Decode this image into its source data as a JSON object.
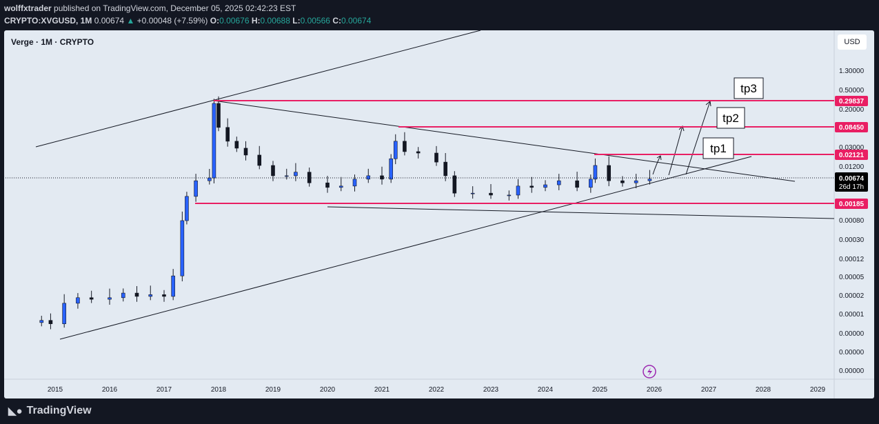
{
  "header": {
    "publisher": "wolffxtrader",
    "published_text": "published on TradingView.com, December 05, 2025 02:42:23 EST",
    "symbol": "CRYPTO:XVGUSD, 1M",
    "price": "0.00674",
    "change": "+0.00048 (+7.59%)",
    "o_label": "O:",
    "o": "0.00676",
    "h_label": "H:",
    "h": "0.00688",
    "l_label": "L:",
    "l": "0.00566",
    "c_label": "C:",
    "c": "0.00674"
  },
  "chart_title": "Verge · 1M · CRYPTO",
  "currency": "USD",
  "footer": {
    "brand": "TradingView"
  },
  "colors": {
    "up": "#2962ff",
    "down": "#131722",
    "level": "#e91e63",
    "bg": "#e3eaf2"
  },
  "chart_data": {
    "type": "candlestick",
    "scale": "log",
    "y_ticks": [
      "1.30000",
      "0.50000",
      "0.20000",
      "0.03000",
      "0.01200",
      "0.00080",
      "0.00030",
      "0.00012",
      "0.00005",
      "0.00002",
      "0.00001",
      "0.00000",
      "0.00000",
      "0.00000"
    ],
    "x_ticks": [
      "2015",
      "2016",
      "2017",
      "2018",
      "2019",
      "2020",
      "2021",
      "2022",
      "2023",
      "2024",
      "2025",
      "2026",
      "2027",
      "2028",
      "2029"
    ],
    "closes": [
      [
        "2014-10",
        7.2e-06
      ],
      [
        "2014-12",
        6.1e-06
      ],
      [
        "2015-03",
        1.65e-05
      ],
      [
        "2015-06",
        2.16e-05
      ],
      [
        "2015-09",
        2e-05
      ],
      [
        "2016-01",
        2.16e-05
      ],
      [
        "2016-04",
        2.7e-05
      ],
      [
        "2016-07",
        2.3e-05
      ],
      [
        "2016-10",
        2.5e-05
      ],
      [
        "2017-01",
        2.3e-05
      ],
      [
        "2017-03",
        6.2e-05
      ],
      [
        "2017-05",
        0.0009
      ],
      [
        "2017-06",
        0.00291
      ],
      [
        "2017-08",
        0.0062
      ],
      [
        "2017-11",
        0.0071
      ],
      [
        "2017-12",
        0.262
      ],
      [
        "2018-01",
        0.082
      ],
      [
        "2018-03",
        0.042
      ],
      [
        "2018-05",
        0.03
      ],
      [
        "2018-07",
        0.0215
      ],
      [
        "2018-10",
        0.013
      ],
      [
        "2019-01",
        0.0079
      ],
      [
        "2019-04",
        0.0079
      ],
      [
        "2019-06",
        0.0094
      ],
      [
        "2019-09",
        0.0056
      ],
      [
        "2020-01",
        0.0045
      ],
      [
        "2020-04",
        0.0048
      ],
      [
        "2020-07",
        0.0067
      ],
      [
        "2020-10",
        0.0079
      ],
      [
        "2021-01",
        0.0067
      ],
      [
        "2021-03",
        0.018
      ],
      [
        "2021-04",
        0.042
      ],
      [
        "2021-06",
        0.0254
      ],
      [
        "2021-09",
        0.0237
      ],
      [
        "2022-01",
        0.0153
      ],
      [
        "2022-03",
        0.0079
      ],
      [
        "2022-05",
        0.0034
      ],
      [
        "2022-09",
        0.0034
      ],
      [
        "2023-01",
        0.0031
      ],
      [
        "2023-05",
        0.0031
      ],
      [
        "2023-07",
        0.0048
      ],
      [
        "2023-10",
        0.0045
      ],
      [
        "2024-01",
        0.0051
      ],
      [
        "2024-04",
        0.0062
      ],
      [
        "2024-08",
        0.0045
      ],
      [
        "2024-11",
        0.0067
      ],
      [
        "2024-12",
        0.013
      ],
      [
        "2025-03",
        0.0062
      ],
      [
        "2025-06",
        0.0056
      ],
      [
        "2025-09",
        0.0062
      ],
      [
        "2025-12",
        0.00674
      ]
    ],
    "levels": [
      {
        "price": "0.29837"
      },
      {
        "price": "0.08450"
      },
      {
        "price": "0.02121"
      },
      {
        "price": "0.00185"
      }
    ],
    "last_price": "0.00674",
    "countdown": "26d 17h",
    "annotations": [
      "tp1",
      "tp2",
      "tp3"
    ]
  }
}
